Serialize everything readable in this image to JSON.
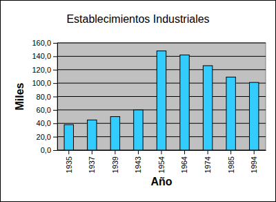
{
  "chart_data": {
    "type": "bar",
    "title": "Establecimientos Industriales",
    "x_label": "Año",
    "y_label": "Miles",
    "categories": [
      "1935",
      "1937",
      "1939",
      "1943",
      "1954",
      "1964",
      "1974",
      "1985",
      "1994"
    ],
    "values": [
      38,
      45,
      50,
      60,
      148,
      142,
      126,
      109,
      101
    ],
    "color": "#33ccff",
    "ylim": [
      0,
      160
    ],
    "yticks": [
      {
        "value": 0,
        "label": "0,0"
      },
      {
        "value": 20,
        "label": "20,0"
      },
      {
        "value": 40,
        "label": "40,0"
      },
      {
        "value": 60,
        "label": "60,0"
      },
      {
        "value": 80,
        "label": "80,0"
      },
      {
        "value": 100,
        "label": "100,0"
      },
      {
        "value": 120,
        "label": "120,0"
      },
      {
        "value": 140,
        "label": "140,0"
      },
      {
        "value": 160,
        "label": "160,0"
      }
    ],
    "grid": true
  }
}
